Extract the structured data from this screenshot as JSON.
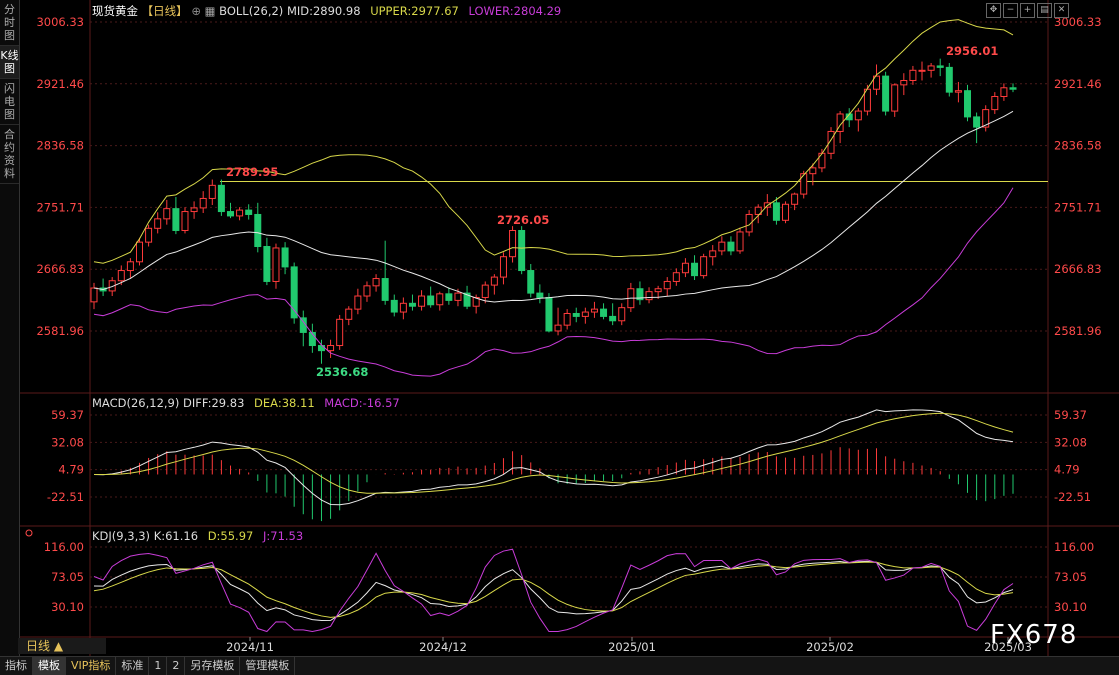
{
  "left_tabs": [
    "分时图",
    "K线图",
    "闪电图",
    "合约资料"
  ],
  "active_tab": 1,
  "header": {
    "title": "现货黄金",
    "period": "【日线】",
    "boll": "BOLL(26,2)",
    "mid": "MID:2890.98",
    "upper": "UPPER:2977.67",
    "lower": "LOWER:2804.29"
  },
  "price_axis": [
    "3006.33",
    "2921.46",
    "2836.58",
    "2751.71",
    "2666.83",
    "2581.96"
  ],
  "annotations": {
    "high1": "2789.95",
    "high2": "2726.05",
    "low1": "2536.68",
    "high3": "2956.01"
  },
  "macd": {
    "label": "MACD(26,12,9)",
    "diff": "DIFF:29.83",
    "dea": "DEA:38.11",
    "macd": "MACD:-16.57",
    "axis": [
      "59.37",
      "32.08",
      "4.79",
      "-22.51"
    ]
  },
  "kdj": {
    "label": "KDJ(9,3,3)",
    "k": "K:61.16",
    "d": "D:55.97",
    "j": "J:71.53",
    "axis": [
      "116.00",
      "73.05",
      "30.10"
    ]
  },
  "x_axis": [
    "2024/11",
    "2024/12",
    "2025/01",
    "2025/02",
    "2025/03"
  ],
  "ticker_label": "日线 ▲",
  "bottom_tabs": [
    "指标",
    "模板",
    "VIP指标",
    "标准",
    "1",
    "2",
    "另存模板",
    "管理模板"
  ],
  "watermark": "FX678",
  "colors": {
    "up": "#ff3b3b",
    "down": "#21c96e",
    "mid": "#e8e8e8",
    "upper": "#d8d84a",
    "lower": "#c83cd8",
    "hline": "#d8d84a",
    "grid": "#4a1a1a"
  },
  "chart_data": {
    "type": "candlestick",
    "ylim": [
      2510,
      3020
    ],
    "candles": [
      [
        2622,
        2648,
        2612,
        2641
      ],
      [
        2641,
        2654,
        2630,
        2637
      ],
      [
        2637,
        2656,
        2630,
        2651
      ],
      [
        2651,
        2672,
        2645,
        2665
      ],
      [
        2665,
        2682,
        2655,
        2677
      ],
      [
        2677,
        2710,
        2672,
        2704
      ],
      [
        2704,
        2728,
        2698,
        2723
      ],
      [
        2723,
        2745,
        2716,
        2736
      ],
      [
        2736,
        2762,
        2728,
        2750
      ],
      [
        2750,
        2766,
        2715,
        2720
      ],
      [
        2720,
        2752,
        2716,
        2746
      ],
      [
        2746,
        2760,
        2736,
        2751
      ],
      [
        2751,
        2774,
        2744,
        2764
      ],
      [
        2764,
        2790,
        2755,
        2782
      ],
      [
        2782,
        2790,
        2740,
        2746
      ],
      [
        2746,
        2758,
        2737,
        2740
      ],
      [
        2740,
        2752,
        2734,
        2748
      ],
      [
        2748,
        2756,
        2735,
        2742
      ],
      [
        2742,
        2758,
        2690,
        2698
      ],
      [
        2698,
        2710,
        2645,
        2650
      ],
      [
        2650,
        2702,
        2640,
        2696
      ],
      [
        2696,
        2704,
        2660,
        2670
      ],
      [
        2670,
        2676,
        2592,
        2600
      ],
      [
        2600,
        2610,
        2561,
        2580
      ],
      [
        2580,
        2592,
        2552,
        2562
      ],
      [
        2562,
        2570,
        2537,
        2555
      ],
      [
        2555,
        2570,
        2545,
        2562
      ],
      [
        2562,
        2604,
        2556,
        2598
      ],
      [
        2598,
        2616,
        2590,
        2612
      ],
      [
        2612,
        2640,
        2605,
        2630
      ],
      [
        2630,
        2650,
        2622,
        2644
      ],
      [
        2644,
        2660,
        2636,
        2654
      ],
      [
        2654,
        2706,
        2618,
        2624
      ],
      [
        2624,
        2632,
        2602,
        2608
      ],
      [
        2608,
        2628,
        2598,
        2620
      ],
      [
        2620,
        2632,
        2610,
        2616
      ],
      [
        2616,
        2638,
        2610,
        2630
      ],
      [
        2630,
        2643,
        2614,
        2618
      ],
      [
        2618,
        2636,
        2610,
        2633
      ],
      [
        2633,
        2642,
        2618,
        2624
      ],
      [
        2624,
        2640,
        2616,
        2634
      ],
      [
        2634,
        2644,
        2612,
        2616
      ],
      [
        2616,
        2632,
        2606,
        2628
      ],
      [
        2628,
        2650,
        2620,
        2645
      ],
      [
        2645,
        2660,
        2632,
        2656
      ],
      [
        2656,
        2690,
        2646,
        2684
      ],
      [
        2684,
        2726,
        2676,
        2720
      ],
      [
        2720,
        2726,
        2660,
        2665
      ],
      [
        2665,
        2674,
        2628,
        2634
      ],
      [
        2634,
        2646,
        2620,
        2628
      ],
      [
        2628,
        2634,
        2580,
        2582
      ],
      [
        2582,
        2614,
        2576,
        2590
      ],
      [
        2590,
        2612,
        2584,
        2606
      ],
      [
        2606,
        2614,
        2594,
        2602
      ],
      [
        2602,
        2614,
        2592,
        2608
      ],
      [
        2608,
        2622,
        2600,
        2612
      ],
      [
        2612,
        2620,
        2598,
        2602
      ],
      [
        2602,
        2620,
        2590,
        2596
      ],
      [
        2596,
        2620,
        2590,
        2614
      ],
      [
        2614,
        2648,
        2608,
        2640
      ],
      [
        2640,
        2650,
        2618,
        2625
      ],
      [
        2625,
        2642,
        2620,
        2636
      ],
      [
        2636,
        2644,
        2626,
        2640
      ],
      [
        2640,
        2656,
        2630,
        2650
      ],
      [
        2650,
        2668,
        2644,
        2662
      ],
      [
        2662,
        2682,
        2656,
        2675
      ],
      [
        2675,
        2686,
        2652,
        2658
      ],
      [
        2658,
        2688,
        2654,
        2684
      ],
      [
        2684,
        2700,
        2672,
        2692
      ],
      [
        2692,
        2712,
        2686,
        2704
      ],
      [
        2704,
        2712,
        2686,
        2692
      ],
      [
        2692,
        2724,
        2688,
        2718
      ],
      [
        2718,
        2748,
        2712,
        2742
      ],
      [
        2742,
        2756,
        2730,
        2752
      ],
      [
        2752,
        2770,
        2740,
        2758
      ],
      [
        2758,
        2766,
        2728,
        2734
      ],
      [
        2734,
        2760,
        2730,
        2756
      ],
      [
        2756,
        2772,
        2748,
        2770
      ],
      [
        2770,
        2802,
        2764,
        2798
      ],
      [
        2798,
        2812,
        2782,
        2806
      ],
      [
        2806,
        2832,
        2800,
        2826
      ],
      [
        2826,
        2862,
        2818,
        2856
      ],
      [
        2856,
        2884,
        2840,
        2880
      ],
      [
        2880,
        2888,
        2862,
        2872
      ],
      [
        2872,
        2888,
        2856,
        2884
      ],
      [
        2884,
        2920,
        2878,
        2914
      ],
      [
        2914,
        2948,
        2906,
        2932
      ],
      [
        2932,
        2938,
        2878,
        2884
      ],
      [
        2884,
        2922,
        2876,
        2920
      ],
      [
        2920,
        2936,
        2906,
        2926
      ],
      [
        2926,
        2946,
        2920,
        2940
      ],
      [
        2940,
        2952,
        2926,
        2940
      ],
      [
        2940,
        2950,
        2930,
        2946
      ],
      [
        2946,
        2956,
        2932,
        2944
      ],
      [
        2944,
        2950,
        2904,
        2910
      ],
      [
        2910,
        2924,
        2896,
        2912
      ],
      [
        2912,
        2920,
        2870,
        2876
      ],
      [
        2876,
        2882,
        2840,
        2862
      ],
      [
        2862,
        2892,
        2856,
        2886
      ],
      [
        2886,
        2910,
        2880,
        2904
      ],
      [
        2904,
        2922,
        2898,
        2916
      ],
      [
        2916,
        2922,
        2910,
        2914
      ]
    ]
  }
}
